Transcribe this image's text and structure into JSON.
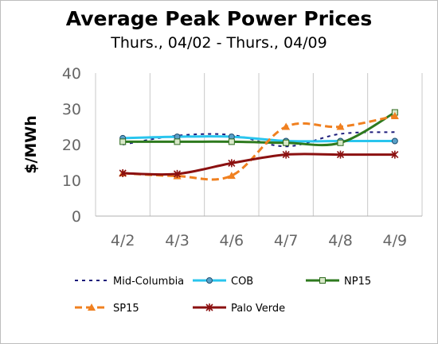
{
  "chart_data": {
    "type": "line",
    "title": "Average Peak Power Prices",
    "subtitle": "Thurs., 04/02 - Thurs., 04/09",
    "xlabel": "",
    "ylabel": "$/MWh",
    "categories": [
      "4/2",
      "4/3",
      "4/6",
      "4/7",
      "4/8",
      "4/9"
    ],
    "ylim": [
      0,
      40
    ],
    "yticks": [
      0,
      10,
      20,
      30,
      40
    ],
    "grid": "vertical",
    "legend_position": "bottom",
    "series": [
      {
        "name": "Mid-Columbia",
        "values": [
          20.0,
          22.5,
          22.7,
          19.5,
          23.0,
          23.5
        ],
        "color": "#1a1a7a",
        "style": "dotted",
        "marker": "none"
      },
      {
        "name": "COB",
        "values": [
          21.8,
          22.2,
          22.2,
          21.0,
          21.0,
          21.0
        ],
        "color": "#29c5ee",
        "style": "solid",
        "marker": "circle"
      },
      {
        "name": "NP15",
        "values": [
          20.8,
          20.8,
          20.8,
          20.5,
          20.5,
          29.0
        ],
        "color": "#2e7a1e",
        "style": "solid",
        "marker": "square"
      },
      {
        "name": "SP15",
        "values": [
          12.0,
          11.2,
          11.3,
          25.0,
          25.0,
          28.0
        ],
        "color": "#f08020",
        "style": "dashed",
        "marker": "triangle"
      },
      {
        "name": "Palo Verde",
        "values": [
          12.0,
          11.8,
          14.8,
          17.2,
          17.2,
          17.2
        ],
        "color": "#8b1010",
        "style": "solid",
        "marker": "star"
      }
    ]
  }
}
